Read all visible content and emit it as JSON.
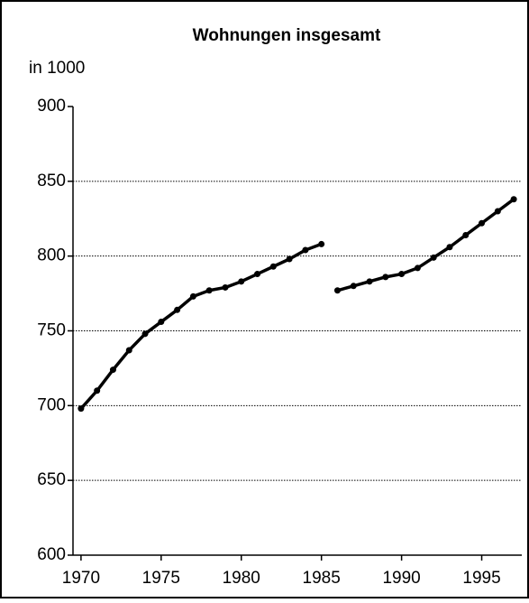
{
  "chart_data": {
    "type": "line",
    "title": "Wohnungen insgesamt",
    "y_label": "in 1000",
    "series": [
      {
        "color": "#000000",
        "x": [
          1970,
          1971,
          1972,
          1973,
          1974,
          1975,
          1976,
          1977,
          1978,
          1979,
          1980,
          1981,
          1982,
          1983,
          1984,
          1985
        ],
        "values": [
          698,
          710,
          724,
          737,
          748,
          756,
          764,
          773,
          777,
          779,
          783,
          788,
          793,
          798,
          804,
          808
        ]
      },
      {
        "color": "#000000",
        "x": [
          1986,
          1987,
          1988,
          1989,
          1990,
          1991,
          1992,
          1993,
          1994,
          1995,
          1996,
          1997
        ],
        "values": [
          777,
          780,
          783,
          786,
          788,
          792,
          799,
          806,
          814,
          822,
          830,
          838
        ]
      }
    ],
    "xlim": [
      1969.5,
      1997.5
    ],
    "xticks": [
      1970,
      1975,
      1980,
      1985,
      1990,
      1995
    ],
    "ylim": [
      600,
      900
    ],
    "yticks": [
      600,
      650,
      700,
      750,
      800,
      850,
      900
    ],
    "grid": true
  }
}
